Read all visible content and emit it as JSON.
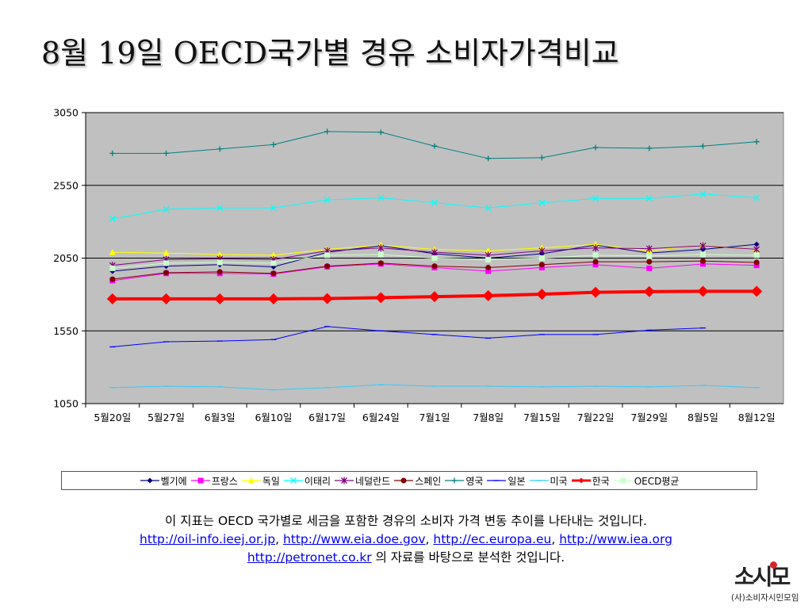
{
  "title": "8월 19일 OECD국가별 경유 소비자가격비교",
  "chart_data": {
    "type": "line",
    "title": "8월 19일 OECD국가별 경유 소비자가격비교",
    "categories": [
      "5월20일",
      "5월27일",
      "6월3일",
      "6월10일",
      "6월17일",
      "6월24일",
      "7월1일",
      "7월8일",
      "7월15일",
      "7월22일",
      "7월29일",
      "8월5일",
      "8월12일"
    ],
    "yticks": [
      1050,
      1550,
      2050,
      2550,
      3050
    ],
    "ylim": [
      1050,
      3050
    ],
    "grid": true,
    "legend_position": "bottom",
    "series": [
      {
        "name": "벨기에",
        "color": "#000080",
        "marker": "diamond",
        "width": 1,
        "values": [
          1960,
          1995,
          2005,
          1990,
          2090,
          2135,
          2080,
          2050,
          2080,
          2140,
          2085,
          2110,
          2145
        ]
      },
      {
        "name": "프랑스",
        "color": "#ff00ff",
        "marker": "square",
        "width": 1,
        "values": [
          1895,
          1945,
          1945,
          1940,
          1990,
          2010,
          1985,
          1960,
          1985,
          2005,
          1980,
          2010,
          2000
        ]
      },
      {
        "name": "독일",
        "color": "#ffff00",
        "marker": "triangle",
        "width": 1,
        "values": [
          2090,
          2085,
          2075,
          2070,
          2110,
          2140,
          2110,
          2100,
          2120,
          2145,
          2100,
          2140,
          2105
        ]
      },
      {
        "name": "이태리",
        "color": "#00ffff",
        "marker": "x",
        "width": 1,
        "values": [
          2320,
          2385,
          2395,
          2395,
          2450,
          2465,
          2430,
          2395,
          2430,
          2460,
          2460,
          2490,
          2465
        ]
      },
      {
        "name": "네덜란드",
        "color": "#800080",
        "marker": "star",
        "width": 1,
        "values": [
          2000,
          2040,
          2045,
          2040,
          2100,
          2120,
          2090,
          2070,
          2100,
          2120,
          2115,
          2135,
          2110
        ]
      },
      {
        "name": "스페인",
        "color": "#800000",
        "marker": "circle",
        "width": 1,
        "values": [
          1905,
          1950,
          1955,
          1945,
          1995,
          2015,
          1995,
          1985,
          2005,
          2025,
          2025,
          2030,
          2020
        ]
      },
      {
        "name": "영국",
        "color": "#008080",
        "marker": "plus",
        "width": 1,
        "values": [
          2770,
          2770,
          2800,
          2830,
          2920,
          2915,
          2820,
          2735,
          2740,
          2810,
          2805,
          2820,
          2850
        ]
      },
      {
        "name": "일본",
        "color": "#0000ff",
        "marker": "dash",
        "width": 1,
        "values": [
          1440,
          1475,
          1480,
          1490,
          1580,
          1550,
          1525,
          1500,
          1525,
          1525,
          1555,
          1570,
          null
        ]
      },
      {
        "name": "미국",
        "color": "#33ccff",
        "marker": "dash",
        "width": 1,
        "values": [
          1160,
          1170,
          1165,
          1145,
          1160,
          1180,
          1170,
          1170,
          1165,
          1170,
          1165,
          1175,
          1160
        ]
      },
      {
        "name": "한국",
        "color": "#ff0000",
        "marker": "diamond",
        "width": 4,
        "values": [
          1770,
          1770,
          1770,
          1770,
          1772,
          1778,
          1785,
          1792,
          1802,
          1815,
          1820,
          1822,
          1822
        ]
      },
      {
        "name": "OECD평균",
        "color": "#ccffcc",
        "marker": "square",
        "width": 1,
        "values": [
          1980,
          2015,
          2020,
          2015,
          2070,
          2075,
          2050,
          2040,
          2050,
          2070,
          2065,
          2075,
          2070
        ]
      }
    ]
  },
  "caption": {
    "line1": "이 지표는 OECD 국가별로 세금을 포함한 경유의 소비자 가격 변동 추이를 나타내는 것입니다.",
    "links": [
      "http://oil-info.ieej.or.jp",
      "http://www.eia.doe.gov",
      "http://ec.europa.eu",
      "http://www.iea.org",
      "http://petronet.co.kr"
    ],
    "sep": ",",
    "line3_suffix": " 의 자료를 바탕으로 분석한 것입니다."
  },
  "logo": {
    "mark": "소시모",
    "sub": "(사)소비자시민모임"
  }
}
